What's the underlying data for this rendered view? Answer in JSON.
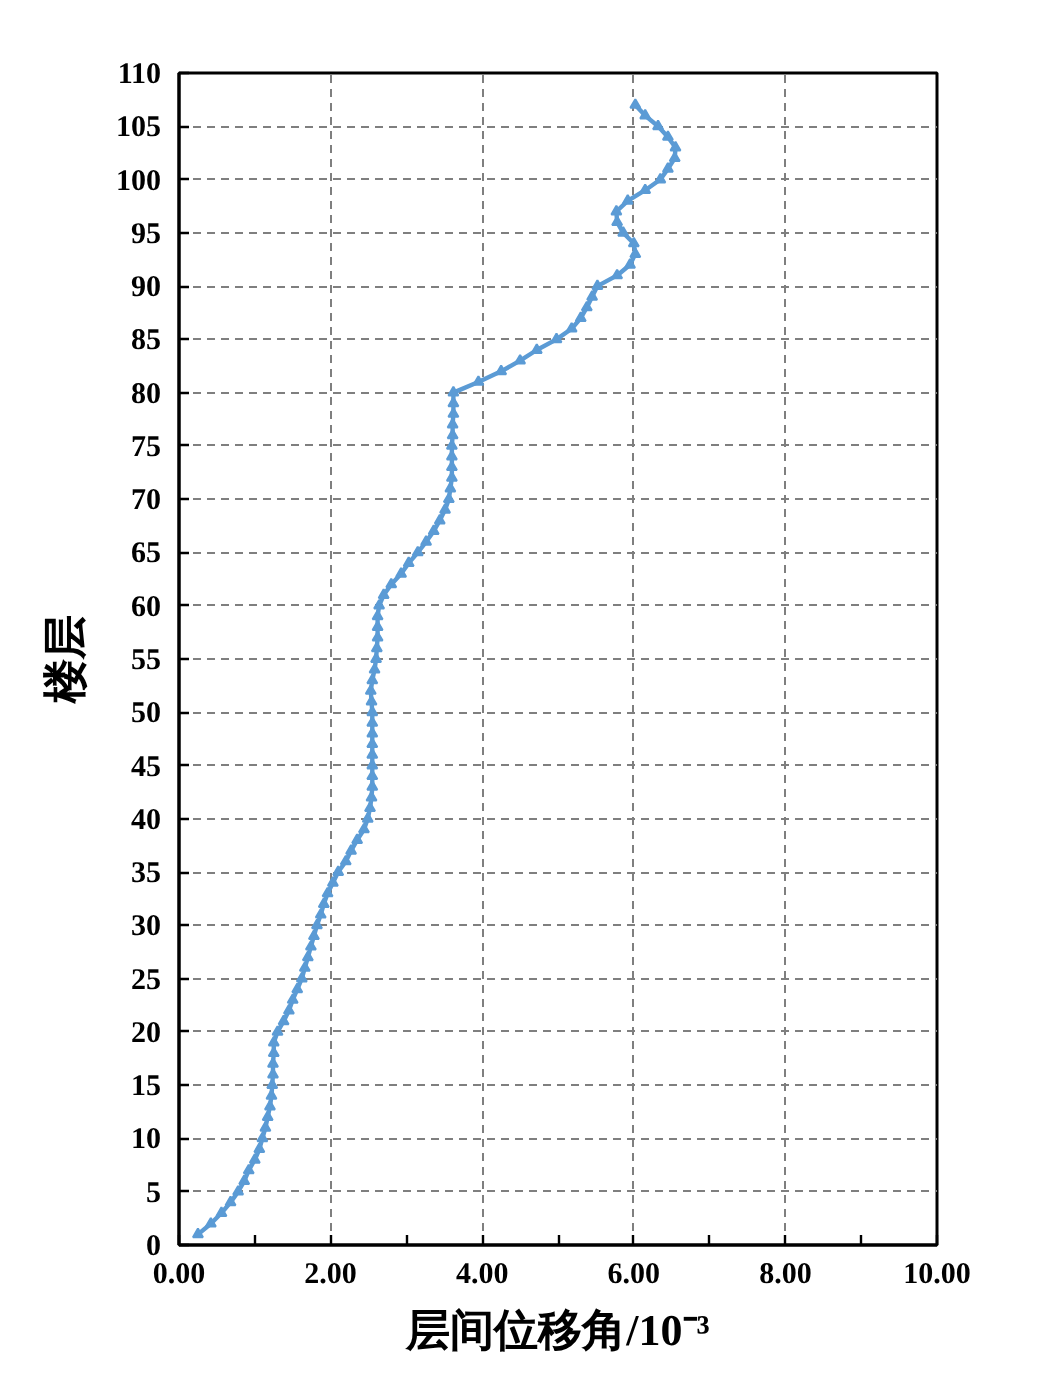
{
  "chart_data": {
    "type": "line",
    "xlabel": "层间位移角/10⁻³",
    "ylabel": "楼层",
    "x": [
      0.25,
      0.42,
      0.56,
      0.68,
      0.78,
      0.86,
      0.92,
      1.0,
      1.06,
      1.1,
      1.14,
      1.17,
      1.2,
      1.22,
      1.23,
      1.24,
      1.24,
      1.25,
      1.25,
      1.3,
      1.38,
      1.45,
      1.5,
      1.56,
      1.62,
      1.66,
      1.7,
      1.74,
      1.78,
      1.82,
      1.87,
      1.91,
      1.96,
      2.03,
      2.1,
      2.2,
      2.27,
      2.35,
      2.44,
      2.49,
      2.52,
      2.54,
      2.55,
      2.55,
      2.55,
      2.55,
      2.55,
      2.55,
      2.55,
      2.55,
      2.54,
      2.53,
      2.55,
      2.58,
      2.6,
      2.61,
      2.62,
      2.62,
      2.62,
      2.64,
      2.7,
      2.8,
      2.93,
      3.03,
      3.15,
      3.26,
      3.36,
      3.44,
      3.51,
      3.56,
      3.58,
      3.6,
      3.6,
      3.6,
      3.6,
      3.61,
      3.61,
      3.62,
      3.62,
      3.62,
      3.95,
      4.25,
      4.5,
      4.72,
      4.98,
      5.18,
      5.3,
      5.38,
      5.45,
      5.52,
      5.78,
      5.95,
      6.02,
      6.0,
      5.86,
      5.78,
      5.77,
      5.92,
      6.15,
      6.35,
      6.45,
      6.54,
      6.55,
      6.45,
      6.32,
      6.15,
      6.02
    ],
    "values": [
      1,
      2,
      3,
      4,
      5,
      6,
      7,
      8,
      9,
      10,
      11,
      12,
      13,
      14,
      15,
      16,
      17,
      18,
      19,
      20,
      21,
      22,
      23,
      24,
      25,
      26,
      27,
      28,
      29,
      30,
      31,
      32,
      33,
      34,
      35,
      36,
      37,
      38,
      39,
      40,
      41,
      42,
      43,
      44,
      45,
      46,
      47,
      48,
      49,
      50,
      51,
      52,
      53,
      54,
      55,
      56,
      57,
      58,
      59,
      60,
      61,
      62,
      63,
      64,
      65,
      66,
      67,
      68,
      69,
      70,
      71,
      72,
      73,
      74,
      75,
      76,
      77,
      78,
      79,
      80,
      81,
      82,
      83,
      84,
      85,
      86,
      87,
      88,
      89,
      90,
      91,
      92,
      93,
      94,
      95,
      96,
      97,
      98,
      99,
      100,
      101,
      102,
      103,
      104,
      105,
      106,
      107
    ],
    "color": "#5b9bd5",
    "xlim": [
      0,
      10
    ],
    "ylim": [
      0,
      110
    ],
    "xticks": [
      {
        "value": 0,
        "label": "0.00"
      },
      {
        "value": 2,
        "label": "2.00"
      },
      {
        "value": 4,
        "label": "4.00"
      },
      {
        "value": 6,
        "label": "6.00"
      },
      {
        "value": 8,
        "label": "8.00"
      },
      {
        "value": 10,
        "label": "10.00"
      }
    ],
    "yticks": [
      0,
      5,
      10,
      15,
      20,
      25,
      30,
      35,
      40,
      45,
      50,
      55,
      60,
      65,
      70,
      75,
      80,
      85,
      90,
      95,
      100,
      105,
      110
    ],
    "grid": true,
    "marker": "triangle",
    "line_style": "solid"
  }
}
